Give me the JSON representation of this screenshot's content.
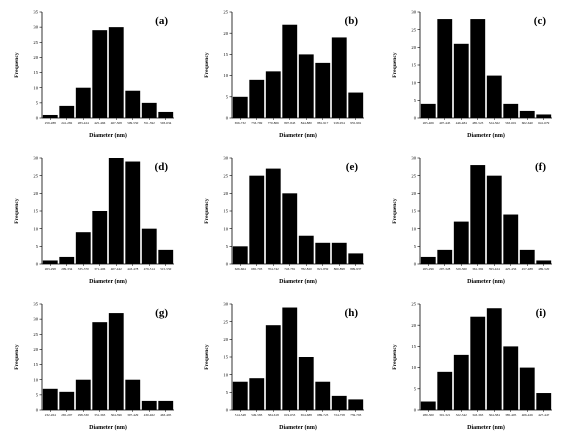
{
  "chart_data": [
    {
      "panel_label": "(a)",
      "type": "bar",
      "xlabel": "Diameter (nm)",
      "ylabel": "Frequency",
      "ylim": [
        0,
        35
      ],
      "yticks": [
        0,
        5,
        10,
        15,
        20,
        25,
        30,
        35
      ],
      "categories": [
        "259-288",
        "241-282",
        "283-424",
        "425-466",
        "467-508",
        "509-550",
        "551-592",
        "593-634"
      ],
      "values": [
        1,
        4,
        10,
        29,
        30,
        9,
        5,
        2
      ]
    },
    {
      "panel_label": "(b)",
      "type": "bar",
      "xlabel": "Diameter (nm)",
      "ylabel": "Frequency",
      "ylim": [
        0,
        25
      ],
      "yticks": [
        0,
        5,
        10,
        15,
        20,
        25
      ],
      "categories": [
        "656-732",
        "733-769",
        "770-806",
        "807-843",
        "844-880",
        "881-917",
        "918-954",
        "955-991"
      ],
      "values": [
        5,
        9,
        11,
        22,
        15,
        13,
        19,
        6
      ]
    },
    {
      "panel_label": "(c)",
      "type": "bar",
      "xlabel": "Diameter (nm)",
      "ylabel": "Frequency",
      "ylim": [
        0,
        30
      ],
      "yticks": [
        0,
        5,
        10,
        15,
        20,
        25,
        30
      ],
      "categories": [
        "265-406",
        "407-445",
        "446-484",
        "485-523",
        "524-562",
        "563-601",
        "602-640",
        "641-679"
      ],
      "values": [
        4,
        28,
        21,
        28,
        12,
        4,
        2,
        1
      ]
    },
    {
      "panel_label": "(d)",
      "type": "bar",
      "xlabel": "Diameter (nm)",
      "ylabel": "Frequency",
      "ylim": [
        0,
        30
      ],
      "yticks": [
        0,
        5,
        10,
        15,
        20,
        25,
        30
      ],
      "categories": [
        "263-298",
        "299-334",
        "335-370",
        "371-406",
        "407-442",
        "443-478",
        "479-514",
        "515-550"
      ],
      "values": [
        1,
        2,
        9,
        15,
        30,
        29,
        10,
        4
      ]
    },
    {
      "panel_label": "(e)",
      "type": "bar",
      "xlabel": "Diameter (nm)",
      "ylabel": "Frequency",
      "ylim": [
        0,
        30
      ],
      "yticks": [
        0,
        5,
        10,
        15,
        20,
        25,
        30
      ],
      "categories": [
        "626-664",
        "665-703",
        "704-742",
        "743-781",
        "782-820",
        "821-859",
        "860-898",
        "899-937"
      ],
      "values": [
        5,
        25,
        27,
        20,
        8,
        6,
        6,
        3
      ]
    },
    {
      "panel_label": "(f)",
      "type": "bar",
      "xlabel": "Diameter (nm)",
      "ylabel": "Frequency",
      "ylim": [
        0,
        30
      ],
      "yticks": [
        0,
        5,
        10,
        15,
        20,
        25,
        30
      ],
      "categories": [
        "265-296",
        "297-328",
        "329-360",
        "361-392",
        "393-424",
        "425-456",
        "457-488",
        "489-520"
      ],
      "values": [
        2,
        4,
        12,
        28,
        25,
        14,
        4,
        1
      ]
    },
    {
      "panel_label": "(g)",
      "type": "bar",
      "xlabel": "Diameter (nm)",
      "ylabel": "Frequency",
      "ylim": [
        0,
        35
      ],
      "yticks": [
        0,
        5,
        10,
        15,
        20,
        25,
        30,
        35
      ],
      "categories": [
        "232-264",
        "265-297",
        "298-330",
        "331-363",
        "364-396",
        "397-429",
        "430-462",
        "463-495"
      ],
      "values": [
        7,
        6,
        10,
        29,
        32,
        10,
        3,
        3
      ]
    },
    {
      "panel_label": "(h)",
      "type": "bar",
      "xlabel": "Diameter (nm)",
      "ylabel": "Frequency",
      "ylim": [
        0,
        30
      ],
      "yticks": [
        0,
        5,
        10,
        15,
        20,
        25,
        30
      ],
      "categories": [
        "514-548",
        "549-583",
        "584-618",
        "619-653",
        "654-688",
        "689-723",
        "724-758",
        "759-793"
      ],
      "values": [
        8,
        9,
        24,
        29,
        15,
        8,
        4,
        3
      ]
    },
    {
      "panel_label": "(i)",
      "type": "bar",
      "xlabel": "Diameter (nm)",
      "ylabel": "Frequency",
      "ylim": [
        0,
        25
      ],
      "yticks": [
        0,
        5,
        10,
        15,
        20,
        25
      ],
      "categories": [
        "280-300",
        "301-321",
        "322-342",
        "343-363",
        "364-384",
        "385-405",
        "406-426",
        "427-447"
      ],
      "values": [
        2,
        9,
        13,
        22,
        24,
        15,
        10,
        4
      ]
    }
  ]
}
